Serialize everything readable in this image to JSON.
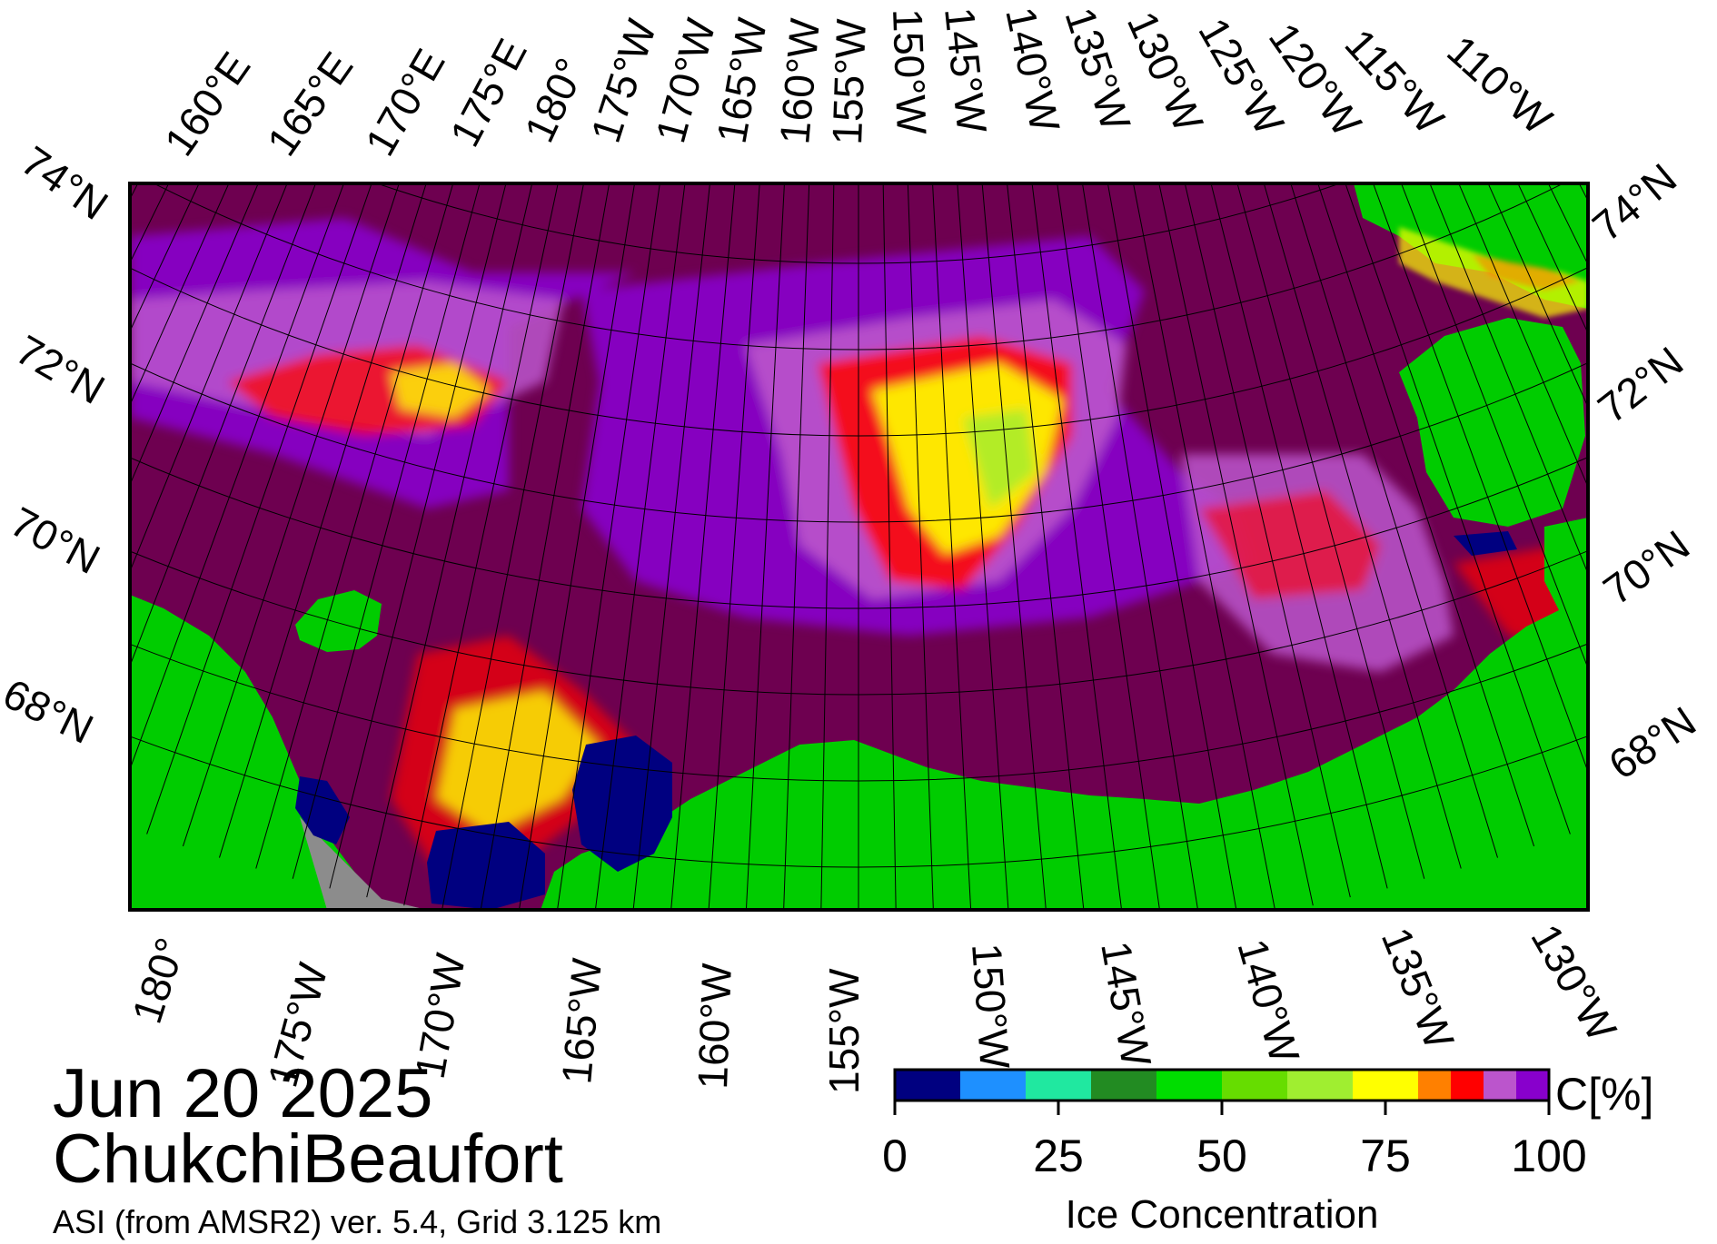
{
  "map": {
    "top_lon_labels": [
      "160°E",
      "165°E",
      "170°E",
      "175°E",
      "180°",
      "175°W",
      "170°W",
      "165°W",
      "160°W",
      "155°W",
      "150°W",
      "145°W",
      "140°W",
      "135°W",
      "130°W",
      "125°W",
      "120°W",
      "115°W",
      "110°W"
    ],
    "bottom_lon_labels": [
      "180°",
      "175°W",
      "170°W",
      "165°W",
      "160°W",
      "155°W",
      "150°W",
      "145°W",
      "140°W",
      "135°W",
      "130°W"
    ],
    "left_lat_labels": [
      "74°N",
      "72°N",
      "70°N",
      "68°N"
    ],
    "right_lat_labels": [
      "74°N",
      "72°N",
      "70°N",
      "68°N"
    ],
    "colors": {
      "land": "#00cc00",
      "open_water": "#6e0050",
      "frame": "#000000",
      "grid": "#000000",
      "no_data": "#8c8c8c"
    }
  },
  "info": {
    "date": "Jun 20 2025",
    "region": "ChukchiBeaufort",
    "source": "ASI (from AMSR2) ver. 5.4,  Grid 3.125 km"
  },
  "colorbar": {
    "unit_label": "C[%]",
    "title": "Ice Concentration",
    "ticks": [
      "0",
      "25",
      "50",
      "75",
      "100"
    ],
    "colors": [
      "#000080",
      "#1e90ff",
      "#20e8a0",
      "#228b22",
      "#00dd00",
      "#66dd00",
      "#a0ee30",
      "#ffff00",
      "#ff8000",
      "#ff0000",
      "#bb55cc",
      "#8800cc"
    ]
  }
}
